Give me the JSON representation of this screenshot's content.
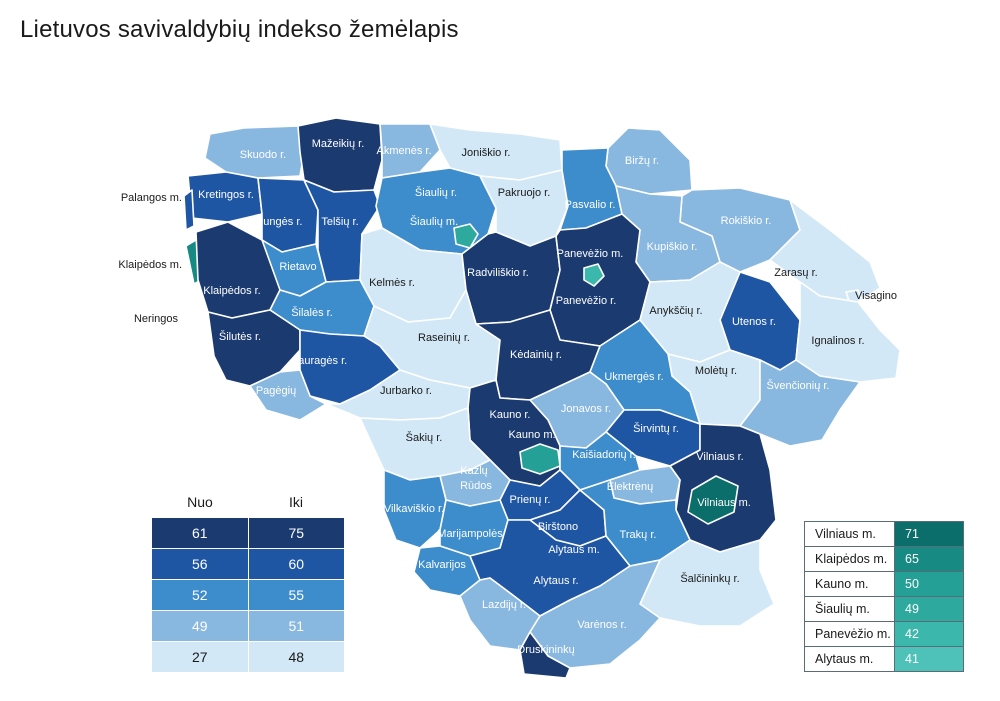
{
  "title": "Lietuvos savivaldybių indekso žemėlapis",
  "legend": {
    "header_from": "Nuo",
    "header_to": "Iki",
    "rows": [
      {
        "from": "61",
        "to": "75",
        "color": "#1b3a70",
        "text_color": "#ffffff"
      },
      {
        "from": "56",
        "to": "60",
        "color": "#1f56a4",
        "text_color": "#ffffff"
      },
      {
        "from": "52",
        "to": "55",
        "color": "#3d8ccc",
        "text_color": "#ffffff"
      },
      {
        "from": "49",
        "to": "51",
        "color": "#88b7e0",
        "text_color": "#ffffff"
      },
      {
        "from": "27",
        "to": "48",
        "color": "#d2e8f6",
        "text_color": "#1a1a1a"
      }
    ]
  },
  "city_table": [
    {
      "name": "Vilniaus m.",
      "value": "71",
      "color": "#0b6e6a"
    },
    {
      "name": "Klaipėdos m.",
      "value": "65",
      "color": "#178a83"
    },
    {
      "name": "Kauno m.",
      "value": "50",
      "color": "#25a096"
    },
    {
      "name": "Šiaulių m.",
      "value": "49",
      "color": "#2ea99e"
    },
    {
      "name": "Panevėžio m.",
      "value": "42",
      "color": "#3bb7ac"
    },
    {
      "name": "Alytaus m.",
      "value": "41",
      "color": "#4ec2b8"
    }
  ],
  "map_labels": {
    "mazeikiai": "Mažeikių r.",
    "akmene": "Akmenės r.",
    "joniskis": "Joniškio r.",
    "skuodas": "Skuodo r.",
    "birzai": "Biržų r.",
    "palanga": "Palangos m.",
    "kretinga": "Kretingos r.",
    "siauliai_r": "Šiaulių r.",
    "pakruojis": "Pakruojo r.",
    "pasvalys": "Pasvalio r.",
    "plunge": "Plungės r.",
    "telsiai": "Telšių r.",
    "siauliai_m": "Šiaulių m.",
    "rokiskis": "Rokiškio r.",
    "kupiskis": "Kupiškio r.",
    "panevezys_m": "Panevėžio m.",
    "klaipeda_m": "Klaipėdos m.",
    "rietavas": "Rietavo",
    "zarasai": "Zarasų r.",
    "kelme": "Kelmės r.",
    "radviliskis": "Radviliškio r.",
    "visaginas": "Visagino",
    "klaipeda_r": "Klaipėdos r.",
    "panevezys_r": "Panevėžio r.",
    "utena": "Utenos r.",
    "silale": "Šilalės r.",
    "neringa": "Neringos",
    "anyksciai": "Anykščių r.",
    "raseiniai": "Raseinių r.",
    "silute": "Šilutės r.",
    "ignalina": "Ignalinos r.",
    "kedainiai": "Kėdainių r.",
    "taurage": "Tauragės r.",
    "moletai": "Molėtų r.",
    "ukmerge": "Ukmergės r.",
    "svencionys": "Švenčionių r.",
    "pagegiai": "Pagėgių",
    "jurbarkas": "Jurbarko r.",
    "jonava": "Jonavos r.",
    "kaunas_r": "Kauno r.",
    "sakiai": "Šakių r.",
    "sirvintos": "Širvintų r.",
    "kaunas_m": "Kauno m.",
    "vilnius_r": "Vilniaus r.",
    "kaisiadorys": "Kaišiadorių r.",
    "kazlu_rudos_1": "Kazlų",
    "kazlu_rudos_2": "Rūdos",
    "elektrenai": "Elektrėnų",
    "prienai": "Prienų r.",
    "vilkaviskis": "Vilkaviškio r.",
    "vilnius_m": "Vilniaus m.",
    "birstonas": "Birštono",
    "marijampole": "Marijampolės",
    "trakai": "Trakų r.",
    "alytus_m": "Alytaus m.",
    "kalvarija": "Kalvarijos",
    "alytus_r": "Alytaus r.",
    "salcininkai": "Šalčininkų r.",
    "lazdijai": "Lazdijų r.",
    "varena": "Varėnos r.",
    "druskininkai": "Druskininkų"
  }
}
